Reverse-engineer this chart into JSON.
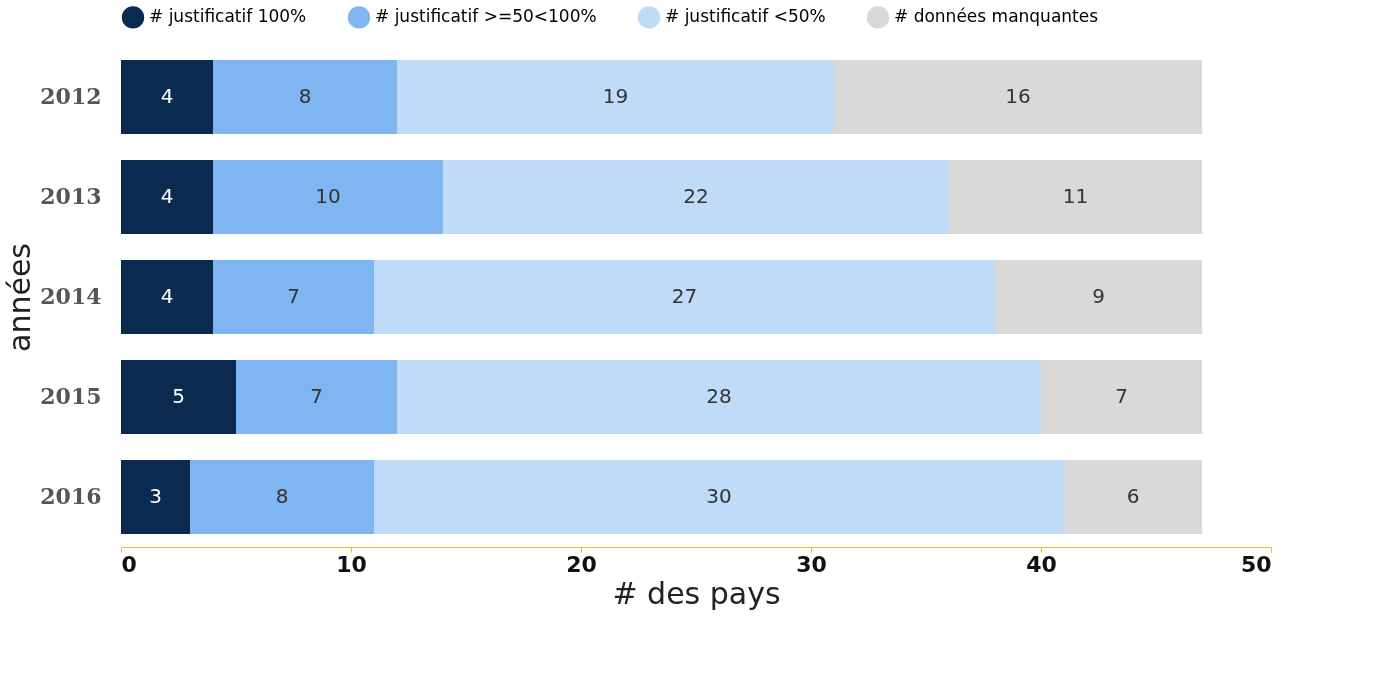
{
  "chart_data": {
    "type": "bar",
    "orientation": "horizontal",
    "stacked": true,
    "data_labels": true,
    "categories": [
      "2012",
      "2013",
      "2014",
      "2015",
      "2016"
    ],
    "series": [
      {
        "name": "# justificatif 100%",
        "color": "#0a2a4f",
        "values": [
          4,
          4,
          4,
          5,
          3
        ]
      },
      {
        "name": "# justificatif >=50<100%",
        "color": "#7fb5f0",
        "values": [
          8,
          10,
          7,
          7,
          8
        ]
      },
      {
        "name": "# justificatif <50%",
        "color": "#c0dbf7",
        "values": [
          19,
          22,
          27,
          28,
          30
        ]
      },
      {
        "name": "# données manquantes",
        "color": "#d9d9d9",
        "values": [
          16,
          11,
          9,
          7,
          6
        ]
      }
    ],
    "xlim": [
      0,
      50
    ],
    "xticks": [
      0,
      10,
      20,
      30,
      40,
      50
    ],
    "xlabel": "# des pays",
    "ylabel": "années",
    "legend": "top",
    "grid": false
  }
}
